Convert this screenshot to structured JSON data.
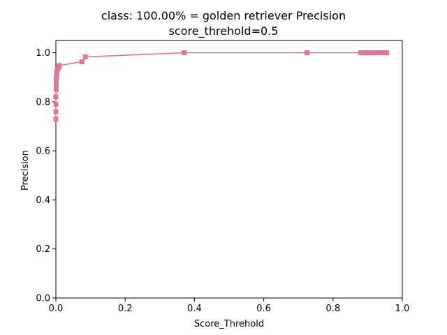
{
  "chart_data": {
    "type": "line",
    "title_line1": "class: 100.00% = golden retriever Precision",
    "title_line2": "score_threhold=0.5",
    "xlabel": "Score_Threhold",
    "ylabel": "Precision",
    "xlim": [
      0,
      1
    ],
    "ylim": [
      0,
      1.05
    ],
    "xticks": [
      "0.0",
      "0.2",
      "0.4",
      "0.6",
      "0.8",
      "1.0"
    ],
    "yticks": [
      "0.0",
      "0.2",
      "0.4",
      "0.6",
      "0.8",
      "1.0"
    ],
    "grid": false,
    "marker": "square",
    "color": "#dd7799",
    "series": [
      {
        "x": [
          0.0,
          0.0,
          0.0,
          0.0,
          0.001,
          0.001,
          0.001,
          0.002,
          0.002,
          0.003,
          0.003,
          0.004,
          0.005,
          0.008,
          0.01,
          0.075,
          0.085,
          0.37,
          0.725,
          0.88,
          0.89,
          0.9,
          0.91,
          0.92,
          0.93,
          0.94,
          0.95,
          0.955
        ],
        "y": [
          0.73,
          0.76,
          0.79,
          0.82,
          0.85,
          0.87,
          0.89,
          0.9,
          0.91,
          0.92,
          0.925,
          0.93,
          0.935,
          0.94,
          0.948,
          0.963,
          0.983,
          1.0,
          1.0,
          1.0,
          1.0,
          1.0,
          1.0,
          1.0,
          1.0,
          1.0,
          1.0,
          1.0
        ]
      }
    ]
  }
}
